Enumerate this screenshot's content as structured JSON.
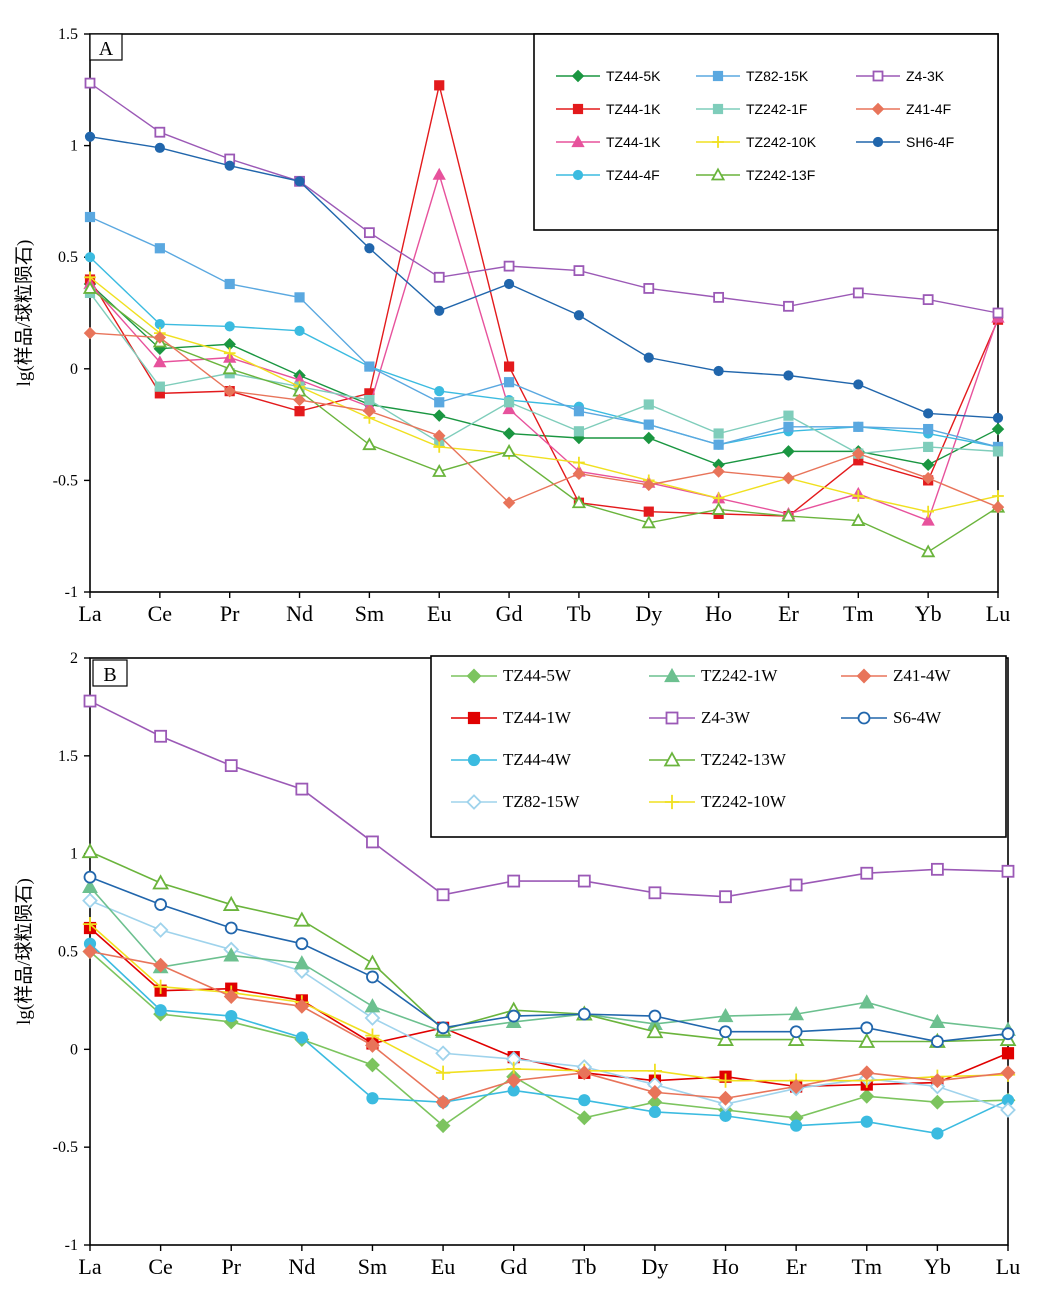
{
  "chart_data": [
    {
      "type": "line",
      "panel_label": "A",
      "categories": [
        "La",
        "Ce",
        "Pr",
        "Nd",
        "Sm",
        "Eu",
        "Gd",
        "Tb",
        "Dy",
        "Ho",
        "Er",
        "Tm",
        "Yb",
        "Lu"
      ],
      "ylabel": "lg(样品/球粒陨石)",
      "ylim": [
        -1,
        1.5
      ],
      "yticks": [
        -1,
        -0.5,
        0,
        0.5,
        1,
        1.5
      ],
      "ytick_labels": [
        "-1",
        "-0.5",
        "0",
        "0.5",
        "1",
        "1.5"
      ],
      "grid": false,
      "legend_position": "top-right",
      "series": [
        {
          "name": "TZ44-5K",
          "color": "#1a9641",
          "marker": "diamond",
          "open": false,
          "values": [
            0.38,
            0.09,
            0.11,
            -0.03,
            -0.16,
            -0.21,
            -0.29,
            -0.31,
            -0.31,
            -0.43,
            -0.37,
            -0.37,
            -0.43,
            -0.27
          ]
        },
        {
          "name": "TZ44-1K",
          "color": "#e31a1c",
          "marker": "square",
          "open": false,
          "values": [
            0.4,
            -0.11,
            -0.1,
            -0.19,
            -0.11,
            1.27,
            0.01,
            -0.6,
            -0.64,
            -0.65,
            -0.66,
            -0.41,
            -0.5,
            0.22
          ]
        },
        {
          "name": "TZ44-1K",
          "color": "#e7529c",
          "marker": "triangle",
          "open": false,
          "values": [
            0.38,
            0.03,
            0.05,
            -0.05,
            -0.17,
            0.87,
            -0.18,
            -0.46,
            -0.51,
            -0.58,
            -0.65,
            -0.56,
            -0.68,
            0.23
          ]
        },
        {
          "name": "TZ44-4F",
          "color": "#3bbbe0",
          "marker": "circle",
          "open": false,
          "values": [
            0.5,
            0.2,
            0.19,
            0.17,
            0.01,
            -0.1,
            -0.14,
            -0.17,
            -0.25,
            -0.34,
            -0.28,
            -0.26,
            -0.29,
            -0.35
          ]
        },
        {
          "name": "TZ82-15K",
          "color": "#5aa8e0",
          "marker": "square",
          "open": false,
          "values": [
            0.68,
            0.54,
            0.38,
            0.32,
            0.01,
            -0.15,
            -0.06,
            -0.19,
            -0.25,
            -0.34,
            -0.26,
            -0.26,
            -0.27,
            -0.35
          ]
        },
        {
          "name": "TZ242-1F",
          "color": "#7fcdbb",
          "marker": "square",
          "open": false,
          "values": [
            0.34,
            -0.08,
            -0.02,
            -0.08,
            -0.14,
            -0.33,
            -0.15,
            -0.28,
            -0.16,
            -0.29,
            -0.21,
            -0.38,
            -0.35,
            -0.37
          ]
        },
        {
          "name": "TZ242-10K",
          "color": "#f0e020",
          "marker": "plus",
          "open": false,
          "values": [
            0.41,
            0.16,
            0.07,
            -0.08,
            -0.22,
            -0.35,
            -0.38,
            -0.42,
            -0.5,
            -0.58,
            -0.49,
            -0.57,
            -0.64,
            -0.57
          ]
        },
        {
          "name": "TZ242-13F",
          "color": "#6ab43c",
          "marker": "triangle",
          "open": true,
          "values": [
            0.36,
            0.12,
            0.0,
            -0.1,
            -0.34,
            -0.46,
            -0.37,
            -0.6,
            -0.69,
            -0.63,
            -0.66,
            -0.68,
            -0.82,
            -0.62
          ]
        },
        {
          "name": "Z4-3K",
          "color": "#9b59b6",
          "marker": "square",
          "open": true,
          "values": [
            1.28,
            1.06,
            0.94,
            0.84,
            0.61,
            0.41,
            0.46,
            0.44,
            0.36,
            0.32,
            0.28,
            0.34,
            0.31,
            0.25
          ]
        },
        {
          "name": "Z41-4F",
          "color": "#e8745a",
          "marker": "diamond",
          "open": false,
          "values": [
            0.16,
            0.14,
            -0.1,
            -0.14,
            -0.19,
            -0.3,
            -0.6,
            -0.47,
            -0.52,
            -0.46,
            -0.49,
            -0.38,
            -0.49,
            -0.62
          ]
        },
        {
          "name": "SH6-4F",
          "color": "#2166ac",
          "marker": "circle",
          "open": false,
          "values": [
            1.04,
            0.99,
            0.91,
            0.84,
            0.54,
            0.26,
            0.38,
            0.24,
            0.05,
            -0.01,
            -0.03,
            -0.07,
            -0.2,
            -0.22
          ]
        }
      ]
    },
    {
      "type": "line",
      "panel_label": "B",
      "categories": [
        "La",
        "Ce",
        "Pr",
        "Nd",
        "Sm",
        "Eu",
        "Gd",
        "Tb",
        "Dy",
        "Ho",
        "Er",
        "Tm",
        "Yb",
        "Lu"
      ],
      "ylabel": "lg(样品/球粒陨石)",
      "ylim": [
        -1,
        2
      ],
      "yticks": [
        -1,
        -0.5,
        0,
        0.5,
        1,
        1.5,
        2
      ],
      "ytick_labels": [
        "-1",
        "-0.5",
        "0",
        "0.5",
        "1",
        "1.5",
        "2"
      ],
      "grid": false,
      "legend_position": "top-right",
      "series": [
        {
          "name": "TZ44-5W",
          "color": "#7cc45e",
          "marker": "diamond",
          "open": false,
          "values": [
            0.5,
            0.18,
            0.14,
            0.05,
            -0.08,
            -0.39,
            -0.14,
            -0.35,
            -0.27,
            -0.31,
            -0.35,
            -0.24,
            -0.27,
            -0.26
          ]
        },
        {
          "name": "TZ44-1W",
          "color": "#e00000",
          "marker": "square",
          "open": false,
          "values": [
            0.62,
            0.3,
            0.31,
            0.25,
            0.03,
            0.11,
            -0.04,
            -0.12,
            -0.16,
            -0.14,
            -0.19,
            -0.18,
            -0.17,
            -0.02
          ]
        },
        {
          "name": "TZ44-4W",
          "color": "#3bbbe0",
          "marker": "circle",
          "open": false,
          "values": [
            0.54,
            0.2,
            0.17,
            0.06,
            -0.25,
            -0.27,
            -0.21,
            -0.26,
            -0.32,
            -0.34,
            -0.39,
            -0.37,
            -0.43,
            -0.26
          ]
        },
        {
          "name": "TZ82-15W",
          "color": "#9fd3ec",
          "marker": "diamond",
          "open": true,
          "values": [
            0.76,
            0.61,
            0.51,
            0.4,
            0.16,
            -0.02,
            -0.05,
            -0.09,
            -0.18,
            -0.28,
            -0.2,
            -0.15,
            -0.19,
            -0.31
          ]
        },
        {
          "name": "TZ242-1W",
          "color": "#6cc08f",
          "marker": "triangle",
          "open": false,
          "values": [
            0.83,
            0.42,
            0.48,
            0.44,
            0.22,
            0.09,
            0.14,
            0.18,
            0.13,
            0.17,
            0.18,
            0.24,
            0.14,
            0.1
          ]
        },
        {
          "name": "Z4-3W",
          "color": "#9b59b6",
          "marker": "square",
          "open": true,
          "values": [
            1.78,
            1.6,
            1.45,
            1.33,
            1.06,
            0.79,
            0.86,
            0.86,
            0.8,
            0.78,
            0.84,
            0.9,
            0.92,
            0.91
          ]
        },
        {
          "name": "TZ242-13W",
          "color": "#6ab43c",
          "marker": "triangle",
          "open": true,
          "values": [
            1.01,
            0.85,
            0.74,
            0.66,
            0.44,
            0.1,
            0.2,
            0.18,
            0.09,
            0.05,
            0.05,
            0.04,
            0.04,
            0.05
          ]
        },
        {
          "name": "TZ242-10W",
          "color": "#f0e020",
          "marker": "plus",
          "open": false,
          "values": [
            0.64,
            0.32,
            0.29,
            0.24,
            0.07,
            -0.12,
            -0.1,
            -0.11,
            -0.11,
            -0.16,
            -0.16,
            -0.16,
            -0.14,
            -0.13
          ]
        },
        {
          "name": "Z41-4W",
          "color": "#e8745a",
          "marker": "diamond",
          "open": false,
          "values": [
            0.5,
            0.43,
            0.27,
            0.22,
            0.02,
            -0.27,
            -0.16,
            -0.12,
            -0.22,
            -0.25,
            -0.19,
            -0.12,
            -0.16,
            -0.12
          ]
        },
        {
          "name": "S6-4W",
          "color": "#2166ac",
          "marker": "circle",
          "open": true,
          "values": [
            0.88,
            0.74,
            0.62,
            0.54,
            0.37,
            0.11,
            0.17,
            0.18,
            0.17,
            0.09,
            0.09,
            0.11,
            0.04,
            0.08
          ]
        }
      ]
    }
  ]
}
